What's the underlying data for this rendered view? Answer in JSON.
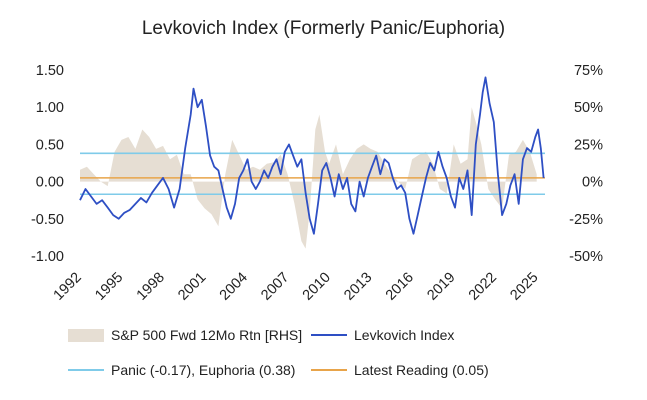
{
  "chart_data": {
    "type": "line",
    "title": "Levkovich Index (Formerly Panic/Euphoria)",
    "x_ticks": [
      "1992",
      "1995",
      "1998",
      "2001",
      "2004",
      "2007",
      "2010",
      "2013",
      "2016",
      "2019",
      "2022",
      "2025"
    ],
    "x_range": [
      1992,
      2025.6
    ],
    "y_left": {
      "range": [
        -1.0,
        1.5
      ],
      "ticks": [
        "1.50",
        "1.00",
        "0.50",
        "0.00",
        "-0.50",
        "-1.00"
      ],
      "tick_values": [
        1.5,
        1.0,
        0.5,
        0.0,
        -0.5,
        -1.0
      ]
    },
    "y_right": {
      "range": [
        -0.5,
        0.75
      ],
      "ticks": [
        "75%",
        "50%",
        "25%",
        "0%",
        "-25%",
        "-50%"
      ],
      "tick_values": [
        0.75,
        0.5,
        0.25,
        0.0,
        -0.25,
        -0.5
      ]
    },
    "grid": false,
    "legend_position": "bottom",
    "series": [
      {
        "name": "S&P 500 Fwd 12Mo Rtn [RHS]",
        "kind": "area",
        "axis": "right",
        "color": "#e6ded3",
        "points": [
          [
            1992,
            0.08
          ],
          [
            1992.5,
            0.1
          ],
          [
            1993,
            0.05
          ],
          [
            1993.5,
            0.0
          ],
          [
            1994,
            -0.03
          ],
          [
            1994.5,
            0.2
          ],
          [
            1995,
            0.28
          ],
          [
            1995.5,
            0.3
          ],
          [
            1996,
            0.22
          ],
          [
            1996.5,
            0.35
          ],
          [
            1997,
            0.3
          ],
          [
            1997.5,
            0.22
          ],
          [
            1998,
            0.24
          ],
          [
            1998.5,
            0.15
          ],
          [
            1999,
            0.18
          ],
          [
            1999.5,
            0.05
          ],
          [
            2000,
            0.05
          ],
          [
            2000.5,
            -0.12
          ],
          [
            2001,
            -0.18
          ],
          [
            2001.5,
            -0.22
          ],
          [
            2002,
            -0.3
          ],
          [
            2002.5,
            0.05
          ],
          [
            2003,
            0.28
          ],
          [
            2003.5,
            0.18
          ],
          [
            2004,
            0.08
          ],
          [
            2004.5,
            0.1
          ],
          [
            2005,
            0.08
          ],
          [
            2005.5,
            0.12
          ],
          [
            2006,
            0.13
          ],
          [
            2006.5,
            0.18
          ],
          [
            2007,
            0.05
          ],
          [
            2007.5,
            -0.15
          ],
          [
            2008,
            -0.4
          ],
          [
            2008.3,
            -0.45
          ],
          [
            2008.6,
            -0.2
          ],
          [
            2009,
            0.35
          ],
          [
            2009.3,
            0.45
          ],
          [
            2009.7,
            0.2
          ],
          [
            2010,
            0.12
          ],
          [
            2010.5,
            0.25
          ],
          [
            2011,
            0.05
          ],
          [
            2011.5,
            0.15
          ],
          [
            2012,
            0.22
          ],
          [
            2012.5,
            0.25
          ],
          [
            2013,
            0.22
          ],
          [
            2013.5,
            0.2
          ],
          [
            2014,
            0.12
          ],
          [
            2014.5,
            0.05
          ],
          [
            2015,
            0.0
          ],
          [
            2015.5,
            -0.05
          ],
          [
            2016,
            0.15
          ],
          [
            2016.5,
            0.18
          ],
          [
            2017,
            0.2
          ],
          [
            2017.5,
            0.12
          ],
          [
            2018,
            -0.05
          ],
          [
            2018.5,
            -0.08
          ],
          [
            2019,
            0.25
          ],
          [
            2019.5,
            0.12
          ],
          [
            2020,
            0.15
          ],
          [
            2020.3,
            0.5
          ],
          [
            2020.6,
            0.4
          ],
          [
            2021,
            0.25
          ],
          [
            2021.5,
            -0.05
          ],
          [
            2022,
            -0.12
          ],
          [
            2022.5,
            -0.18
          ],
          [
            2023,
            0.18
          ],
          [
            2023.5,
            0.2
          ],
          [
            2024,
            0.28
          ],
          [
            2024.5,
            0.2
          ],
          [
            2025,
            0.05
          ]
        ]
      },
      {
        "name": "Levkovich Index",
        "kind": "line",
        "axis": "left",
        "color": "#2e4fc4",
        "points": [
          [
            1992,
            -0.25
          ],
          [
            1992.4,
            -0.1
          ],
          [
            1992.8,
            -0.2
          ],
          [
            1993.2,
            -0.3
          ],
          [
            1993.6,
            -0.25
          ],
          [
            1994,
            -0.35
          ],
          [
            1994.4,
            -0.45
          ],
          [
            1994.8,
            -0.5
          ],
          [
            1995.2,
            -0.42
          ],
          [
            1995.6,
            -0.38
          ],
          [
            1996,
            -0.3
          ],
          [
            1996.4,
            -0.22
          ],
          [
            1996.8,
            -0.28
          ],
          [
            1997.2,
            -0.15
          ],
          [
            1997.6,
            -0.05
          ],
          [
            1998,
            0.05
          ],
          [
            1998.4,
            -0.1
          ],
          [
            1998.8,
            -0.35
          ],
          [
            1999.2,
            -0.1
          ],
          [
            1999.6,
            0.45
          ],
          [
            2000,
            0.9
          ],
          [
            2000.2,
            1.25
          ],
          [
            2000.5,
            1.0
          ],
          [
            2000.8,
            1.1
          ],
          [
            2001.1,
            0.75
          ],
          [
            2001.4,
            0.35
          ],
          [
            2001.7,
            0.2
          ],
          [
            2002,
            0.15
          ],
          [
            2002.3,
            -0.1
          ],
          [
            2002.6,
            -0.35
          ],
          [
            2002.9,
            -0.5
          ],
          [
            2003.2,
            -0.3
          ],
          [
            2003.5,
            0.05
          ],
          [
            2003.8,
            0.15
          ],
          [
            2004.1,
            0.3
          ],
          [
            2004.4,
            0.0
          ],
          [
            2004.7,
            -0.1
          ],
          [
            2005,
            0.0
          ],
          [
            2005.3,
            0.15
          ],
          [
            2005.6,
            0.05
          ],
          [
            2005.9,
            0.2
          ],
          [
            2006.2,
            0.3
          ],
          [
            2006.5,
            0.1
          ],
          [
            2006.8,
            0.4
          ],
          [
            2007.1,
            0.5
          ],
          [
            2007.4,
            0.35
          ],
          [
            2007.7,
            0.2
          ],
          [
            2008,
            0.3
          ],
          [
            2008.3,
            -0.15
          ],
          [
            2008.6,
            -0.5
          ],
          [
            2008.9,
            -0.7
          ],
          [
            2009.2,
            -0.3
          ],
          [
            2009.5,
            0.15
          ],
          [
            2009.8,
            0.25
          ],
          [
            2010.1,
            0.05
          ],
          [
            2010.4,
            -0.2
          ],
          [
            2010.7,
            0.1
          ],
          [
            2011,
            -0.1
          ],
          [
            2011.3,
            0.05
          ],
          [
            2011.6,
            -0.3
          ],
          [
            2011.9,
            -0.4
          ],
          [
            2012.2,
            0.0
          ],
          [
            2012.5,
            -0.2
          ],
          [
            2012.8,
            0.05
          ],
          [
            2013.1,
            0.2
          ],
          [
            2013.4,
            0.35
          ],
          [
            2013.7,
            0.1
          ],
          [
            2014,
            0.3
          ],
          [
            2014.3,
            0.25
          ],
          [
            2014.6,
            0.05
          ],
          [
            2014.9,
            -0.1
          ],
          [
            2015.2,
            -0.05
          ],
          [
            2015.5,
            -0.15
          ],
          [
            2015.8,
            -0.5
          ],
          [
            2016.1,
            -0.7
          ],
          [
            2016.4,
            -0.45
          ],
          [
            2016.7,
            -0.2
          ],
          [
            2017,
            0.05
          ],
          [
            2017.3,
            0.25
          ],
          [
            2017.6,
            0.15
          ],
          [
            2017.9,
            0.4
          ],
          [
            2018.2,
            0.2
          ],
          [
            2018.5,
            0.05
          ],
          [
            2018.8,
            -0.2
          ],
          [
            2019.1,
            -0.35
          ],
          [
            2019.4,
            0.05
          ],
          [
            2019.7,
            -0.1
          ],
          [
            2020,
            0.15
          ],
          [
            2020.3,
            -0.45
          ],
          [
            2020.6,
            0.5
          ],
          [
            2020.9,
            0.9
          ],
          [
            2021.1,
            1.2
          ],
          [
            2021.3,
            1.4
          ],
          [
            2021.6,
            1.05
          ],
          [
            2021.9,
            0.8
          ],
          [
            2022.2,
            0.1
          ],
          [
            2022.5,
            -0.45
          ],
          [
            2022.8,
            -0.3
          ],
          [
            2023.1,
            -0.05
          ],
          [
            2023.4,
            0.1
          ],
          [
            2023.7,
            -0.3
          ],
          [
            2024,
            0.3
          ],
          [
            2024.3,
            0.45
          ],
          [
            2024.6,
            0.4
          ],
          [
            2024.9,
            0.6
          ],
          [
            2025.1,
            0.7
          ],
          [
            2025.3,
            0.45
          ],
          [
            2025.5,
            0.05
          ]
        ]
      }
    ],
    "reference_lines": [
      {
        "axis": "left",
        "value": 0.38,
        "color": "#7fcbe9"
      },
      {
        "axis": "left",
        "value": -0.17,
        "color": "#7fcbe9"
      },
      {
        "axis": "left",
        "value": 0.05,
        "color": "#e8a44a"
      }
    ],
    "legend": [
      {
        "label": "S&P 500 Fwd 12Mo Rtn [RHS]",
        "swatch": "box",
        "color": "#e6ded3"
      },
      {
        "label": "Levkovich Index",
        "swatch": "line",
        "color": "#2e4fc4"
      },
      {
        "label": "Panic (-0.17), Euphoria (0.38)",
        "swatch": "line",
        "color": "#7fcbe9"
      },
      {
        "label": "Latest Reading (0.05)",
        "swatch": "line",
        "color": "#e8a44a"
      }
    ]
  }
}
